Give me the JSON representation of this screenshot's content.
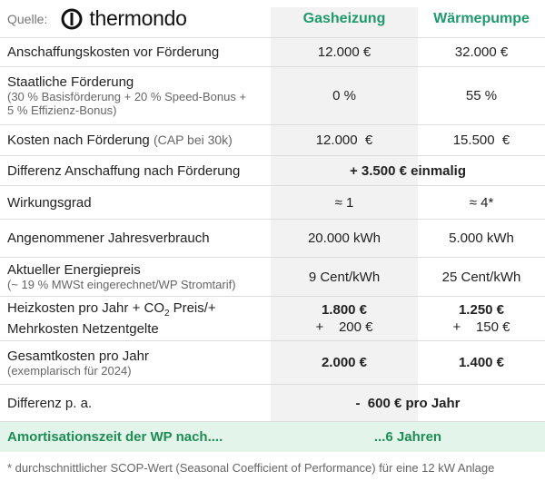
{
  "header": {
    "source_label": "Quelle:",
    "logo": "thermondo",
    "columns": [
      "Gasheizung",
      "Wärmepumpe"
    ]
  },
  "rows": [
    {
      "label": "Anschaffungskosten vor Förderung",
      "values": [
        "12.000 €",
        "32.000 €"
      ]
    },
    {
      "label": "Staatliche Förderung",
      "note": "(30 % Basisförderung + 20 % Speed-Bonus + 5 % Effizienz-Bonus)",
      "values": [
        "0 %",
        "55 %"
      ]
    },
    {
      "label": "Kosten nach Förderung",
      "note": "(CAP bei 30k)",
      "values": [
        "12.000  €",
        "15.500  €"
      ]
    },
    {
      "label": "Differenz Anschaffung nach Förderung",
      "value": "+ 3.500 € einmalig"
    },
    {
      "label": "Wirkungsgrad",
      "values": [
        "≈ 1",
        "≈ 4*"
      ]
    },
    {
      "label": "Angenommener Jahresverbrauch",
      "values": [
        "20.000 kWh",
        "5.000 kWh"
      ]
    },
    {
      "label": "Aktueller Energiepreis",
      "note": "(~ 19 % MWSt eingerechnet/WP Stromtarif)",
      "values": [
        "9 Cent/kWh",
        "25 Cent/kWh"
      ]
    },
    {
      "label_parts": [
        "Heizkosten pro Jahr + CO",
        "2",
        "Preis/+",
        "Mehrkosten Netzentgelte"
      ],
      "values": [
        [
          "1.800 €",
          "+    200 €"
        ],
        [
          "1.250 €",
          "+    150 €"
        ]
      ]
    },
    {
      "label": "Gesamtkosten pro Jahr",
      "note": "(exemplarisch für 2024)",
      "values": [
        "2.000 €",
        "1.400 €"
      ]
    },
    {
      "label": "Differenz p. a.",
      "value": "-  600 € pro Jahr"
    },
    {
      "label": "Amortisationszeit der WP nach....",
      "value": "...6 Jahren"
    }
  ],
  "footnote": "* durchschnittlicher SCOP-Wert (Seasonal Coefficient of Performance) für eine 12 kW Anlage"
}
